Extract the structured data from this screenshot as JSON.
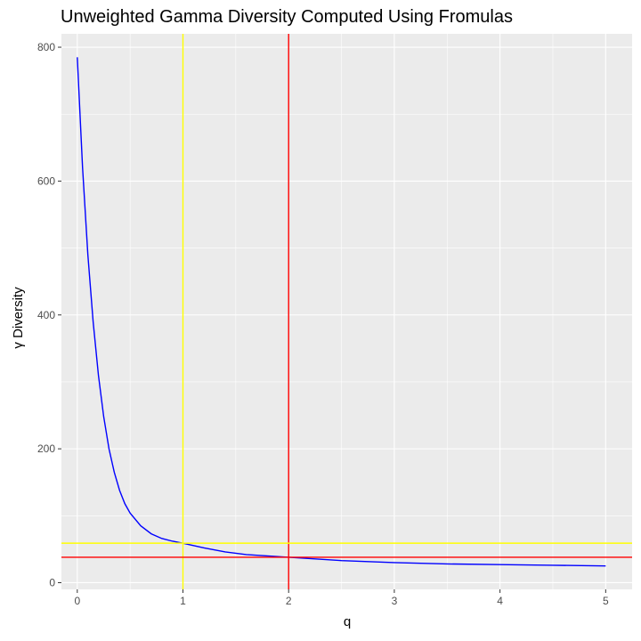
{
  "chart_data": {
    "type": "line",
    "title": "Unweighted Gamma Diversity Computed Using Fromulas",
    "xlabel": "q",
    "ylabel": "γ Diversity",
    "xlim": [
      -0.15,
      5.25
    ],
    "ylim": [
      -10,
      820
    ],
    "x_ticks": [
      0,
      1,
      2,
      3,
      4,
      5
    ],
    "y_ticks": [
      0,
      200,
      400,
      600,
      800
    ],
    "grid": true,
    "series": [
      {
        "color": "#0000ff",
        "x": [
          0,
          0.05,
          0.1,
          0.15,
          0.2,
          0.25,
          0.3,
          0.35,
          0.4,
          0.45,
          0.5,
          0.6,
          0.7,
          0.8,
          0.9,
          1.0,
          1.2,
          1.4,
          1.6,
          1.8,
          2.0,
          2.5,
          3.0,
          3.5,
          4.0,
          4.5,
          5.0
        ],
        "y": [
          785,
          620,
          490,
          390,
          310,
          248,
          200,
          165,
          138,
          118,
          104,
          85,
          73,
          66,
          62,
          59,
          52,
          46,
          42,
          40,
          38,
          33,
          30,
          28,
          27,
          26,
          25
        ]
      }
    ],
    "reference_lines": [
      {
        "orientation": "vertical",
        "value": 1,
        "color": "#ffff00"
      },
      {
        "orientation": "vertical",
        "value": 2,
        "color": "#ff0000"
      },
      {
        "orientation": "horizontal",
        "value": 59,
        "color": "#ffff00"
      },
      {
        "orientation": "horizontal",
        "value": 38,
        "color": "#ff0000"
      }
    ],
    "panel_background": "#ebebeb",
    "grid_color": "#ffffff"
  }
}
